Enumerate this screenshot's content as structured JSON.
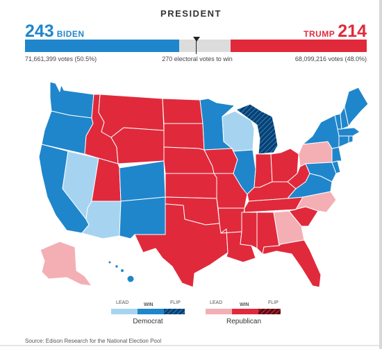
{
  "header": {
    "title": "PRESIDENT",
    "dem": {
      "ev": "243",
      "name": "BIDEN",
      "votes": "71,661,399 votes (50.5%)"
    },
    "rep": {
      "ev": "214",
      "name": "TRUMP",
      "votes": "68,099,216 votes (48.0%)"
    },
    "threshold": "270 electoral votes to win"
  },
  "bar": {
    "total_ev": 538,
    "dem_ev": 243,
    "rep_ev": 214,
    "needed": 270
  },
  "colors": {
    "dem_win": "#1f86cc",
    "dem_lead": "#a6d4f0",
    "dem_flip": "#0d3f6e",
    "rep_win": "#e02a3c",
    "rep_lead": "#f4afb4",
    "rep_flip": "#5a0d14",
    "undecided": "#dcdcdc"
  },
  "legend": {
    "lead": "LEAD",
    "win": "WIN",
    "flip": "FLIP",
    "dem_label": "Democrat",
    "rep_label": "Republican"
  },
  "states": {
    "WA": "dem_win",
    "OR": "dem_win",
    "CA": "dem_win",
    "NV": "dem_lead",
    "ID": "rep_win",
    "MT": "rep_win",
    "WY": "rep_win",
    "UT": "rep_win",
    "AZ": "dem_lead",
    "CO": "dem_win",
    "NM": "dem_win",
    "ND": "rep_win",
    "SD": "rep_win",
    "NE": "rep_win",
    "KS": "rep_win",
    "OK": "rep_win",
    "TX": "rep_win",
    "MN": "dem_win",
    "IA": "rep_win",
    "MO": "rep_win",
    "AR": "rep_win",
    "LA": "rep_win",
    "WI": "dem_lead",
    "IL": "dem_win",
    "MI": "dem_flip",
    "IN": "rep_win",
    "OH": "rep_win",
    "KY": "rep_win",
    "TN": "rep_win",
    "MS": "rep_win",
    "AL": "rep_win",
    "GA": "rep_lead",
    "FL": "rep_win",
    "SC": "rep_win",
    "NC": "rep_lead",
    "VA": "dem_win",
    "WV": "rep_win",
    "PA": "rep_lead",
    "NY": "dem_win",
    "ME": "dem_win",
    "NH": "dem_win",
    "VT": "dem_win",
    "MA": "dem_win",
    "CT": "dem_win",
    "RI": "dem_win",
    "NJ": "dem_win",
    "DE": "dem_win",
    "MD": "dem_win",
    "AK": "rep_lead",
    "HI": "dem_win"
  },
  "source": "Source: Edison Research for the National Election Pool"
}
